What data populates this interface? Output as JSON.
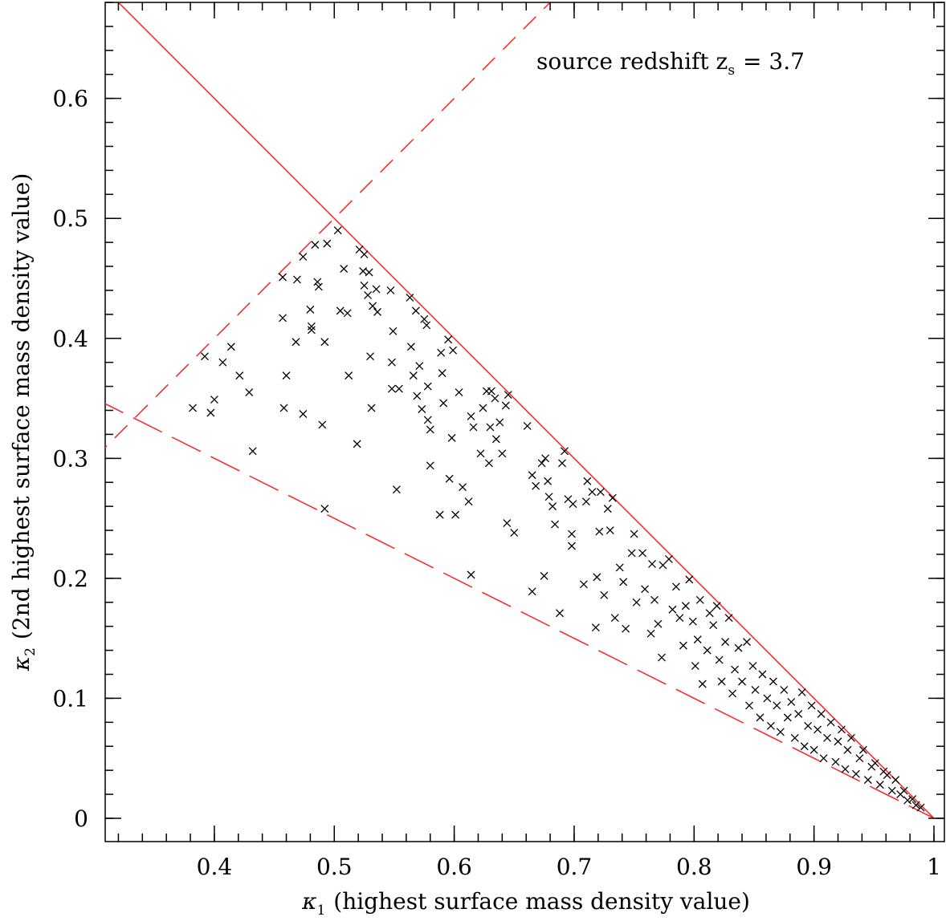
{
  "chart_data": {
    "type": "scatter",
    "annotation": {
      "text": "source redshift z",
      "sub": "s",
      "rest": "= 3.7"
    },
    "x_label": {
      "symbol": "κ",
      "sub": "1",
      "text": "(highest surface mass density value)"
    },
    "y_label": {
      "symbol": "κ",
      "sub": "2",
      "text": "(2nd highest surface mass density value)"
    },
    "xlim": [
      0.309,
      1.0087
    ],
    "ylim": [
      -0.0194,
      0.68
    ],
    "xticks": [
      0.4,
      0.5,
      0.6,
      0.7,
      0.8,
      0.9,
      1
    ],
    "yticks": [
      0,
      0.1,
      0.2,
      0.3,
      0.4,
      0.5,
      0.6
    ],
    "series": [
      {
        "color": "#000000",
        "x": [
          0.382,
          0.397,
          0.4,
          0.392,
          0.407,
          0.414,
          0.421,
          0.429,
          0.432,
          0.457,
          0.457,
          0.46,
          0.458,
          0.468,
          0.469,
          0.474,
          0.474,
          0.48,
          0.481,
          0.481,
          0.484,
          0.486,
          0.487,
          0.49,
          0.492,
          0.492,
          0.494,
          0.503,
          0.505,
          0.508,
          0.511,
          0.512,
          0.519,
          0.521,
          0.524,
          0.525,
          0.525,
          0.528,
          0.529,
          0.53,
          0.531,
          0.532,
          0.535,
          0.536,
          0.547,
          0.548,
          0.549,
          0.552,
          0.548,
          0.554,
          0.563,
          0.564,
          0.568,
          0.569,
          0.566,
          0.571,
          0.573,
          0.575,
          0.577,
          0.578,
          0.578,
          0.58,
          0.58,
          0.588,
          0.589,
          0.59,
          0.591,
          0.595,
          0.596,
          0.598,
          0.599,
          0.601,
          0.604,
          0.607,
          0.612,
          0.614,
          0.614,
          0.616,
          0.622,
          0.624,
          0.627,
          0.629,
          0.63,
          0.631,
          0.634,
          0.635,
          0.638,
          0.64,
          0.643,
          0.645,
          0.644,
          0.65,
          0.661,
          0.665,
          0.665,
          0.668,
          0.673,
          0.675,
          0.676,
          0.678,
          0.679,
          0.682,
          0.684,
          0.688,
          0.69,
          0.692,
          0.695,
          0.698,
          0.698,
          0.699,
          0.708,
          0.71,
          0.711,
          0.715,
          0.718,
          0.719,
          0.721,
          0.722,
          0.725,
          0.728,
          0.73,
          0.732,
          0.734,
          0.738,
          0.741,
          0.743,
          0.748,
          0.75,
          0.752,
          0.757,
          0.759,
          0.764,
          0.765,
          0.767,
          0.77,
          0.773,
          0.774,
          0.779,
          0.782,
          0.785,
          0.788,
          0.791,
          0.793,
          0.796,
          0.799,
          0.801,
          0.803,
          0.805,
          0.807,
          0.811,
          0.813,
          0.816,
          0.819,
          0.821,
          0.823,
          0.826,
          0.829,
          0.832,
          0.834,
          0.837,
          0.84,
          0.844,
          0.846,
          0.849,
          0.851,
          0.855,
          0.857,
          0.861,
          0.864,
          0.866,
          0.869,
          0.872,
          0.875,
          0.878,
          0.881,
          0.884,
          0.887,
          0.89,
          0.892,
          0.895,
          0.898,
          0.9,
          0.903,
          0.906,
          0.908,
          0.911,
          0.914,
          0.918,
          0.92,
          0.923,
          0.926,
          0.928,
          0.931,
          0.935,
          0.938,
          0.941,
          0.945,
          0.948,
          0.951,
          0.955,
          0.958,
          0.961,
          0.965,
          0.968,
          0.972,
          0.975,
          0.978,
          0.982,
          0.985,
          0.989
        ],
        "values": [
          0.342,
          0.338,
          0.349,
          0.385,
          0.38,
          0.393,
          0.369,
          0.355,
          0.306,
          0.417,
          0.451,
          0.369,
          0.342,
          0.397,
          0.449,
          0.468,
          0.337,
          0.424,
          0.407,
          0.41,
          0.478,
          0.447,
          0.443,
          0.328,
          0.397,
          0.258,
          0.479,
          0.49,
          0.423,
          0.458,
          0.421,
          0.369,
          0.312,
          0.474,
          0.456,
          0.47,
          0.444,
          0.436,
          0.455,
          0.385,
          0.342,
          0.427,
          0.441,
          0.422,
          0.44,
          0.38,
          0.406,
          0.274,
          0.358,
          0.358,
          0.434,
          0.393,
          0.423,
          0.352,
          0.369,
          0.377,
          0.341,
          0.416,
          0.411,
          0.36,
          0.332,
          0.294,
          0.324,
          0.253,
          0.388,
          0.371,
          0.346,
          0.399,
          0.283,
          0.317,
          0.39,
          0.253,
          0.355,
          0.276,
          0.264,
          0.335,
          0.203,
          0.326,
          0.304,
          0.342,
          0.356,
          0.296,
          0.326,
          0.356,
          0.35,
          0.316,
          0.33,
          0.304,
          0.344,
          0.353,
          0.246,
          0.238,
          0.327,
          0.189,
          0.286,
          0.277,
          0.296,
          0.202,
          0.3,
          0.281,
          0.268,
          0.26,
          0.245,
          0.171,
          0.296,
          0.306,
          0.266,
          0.237,
          0.227,
          0.262,
          0.195,
          0.264,
          0.281,
          0.272,
          0.159,
          0.201,
          0.239,
          0.272,
          0.186,
          0.258,
          0.24,
          0.267,
          0.167,
          0.209,
          0.197,
          0.158,
          0.221,
          0.237,
          0.18,
          0.221,
          0.191,
          0.154,
          0.212,
          0.182,
          0.162,
          0.134,
          0.211,
          0.216,
          0.174,
          0.193,
          0.167,
          0.144,
          0.177,
          0.199,
          0.164,
          0.127,
          0.149,
          0.182,
          0.112,
          0.14,
          0.171,
          0.161,
          0.177,
          0.132,
          0.114,
          0.147,
          0.167,
          0.104,
          0.124,
          0.142,
          0.114,
          0.147,
          0.094,
          0.127,
          0.107,
          0.084,
          0.12,
          0.1,
          0.077,
          0.114,
          0.094,
          0.072,
          0.107,
          0.084,
          0.097,
          0.067,
          0.087,
          0.105,
          0.06,
          0.077,
          0.094,
          0.057,
          0.074,
          0.087,
          0.05,
          0.067,
          0.08,
          0.047,
          0.064,
          0.074,
          0.041,
          0.057,
          0.067,
          0.037,
          0.05,
          0.057,
          0.032,
          0.043,
          0.046,
          0.028,
          0.039,
          0.036,
          0.023,
          0.032,
          0.02,
          0.023,
          0.015,
          0.016,
          0.011,
          0.009
        ]
      }
    ],
    "lines": [
      {
        "color": "#ff2020",
        "style": "solid",
        "x": [
          0.32,
          1
        ],
        "values": [
          0.68,
          0
        ]
      },
      {
        "color": "#ff2020",
        "style": "dashed",
        "x": [
          0.3,
          0.7
        ],
        "values": [
          0.3,
          0.7
        ]
      },
      {
        "color": "#ff2020",
        "style": "long-dashed",
        "x": [
          0.3,
          1
        ],
        "values": [
          0.35,
          0
        ]
      }
    ]
  }
}
